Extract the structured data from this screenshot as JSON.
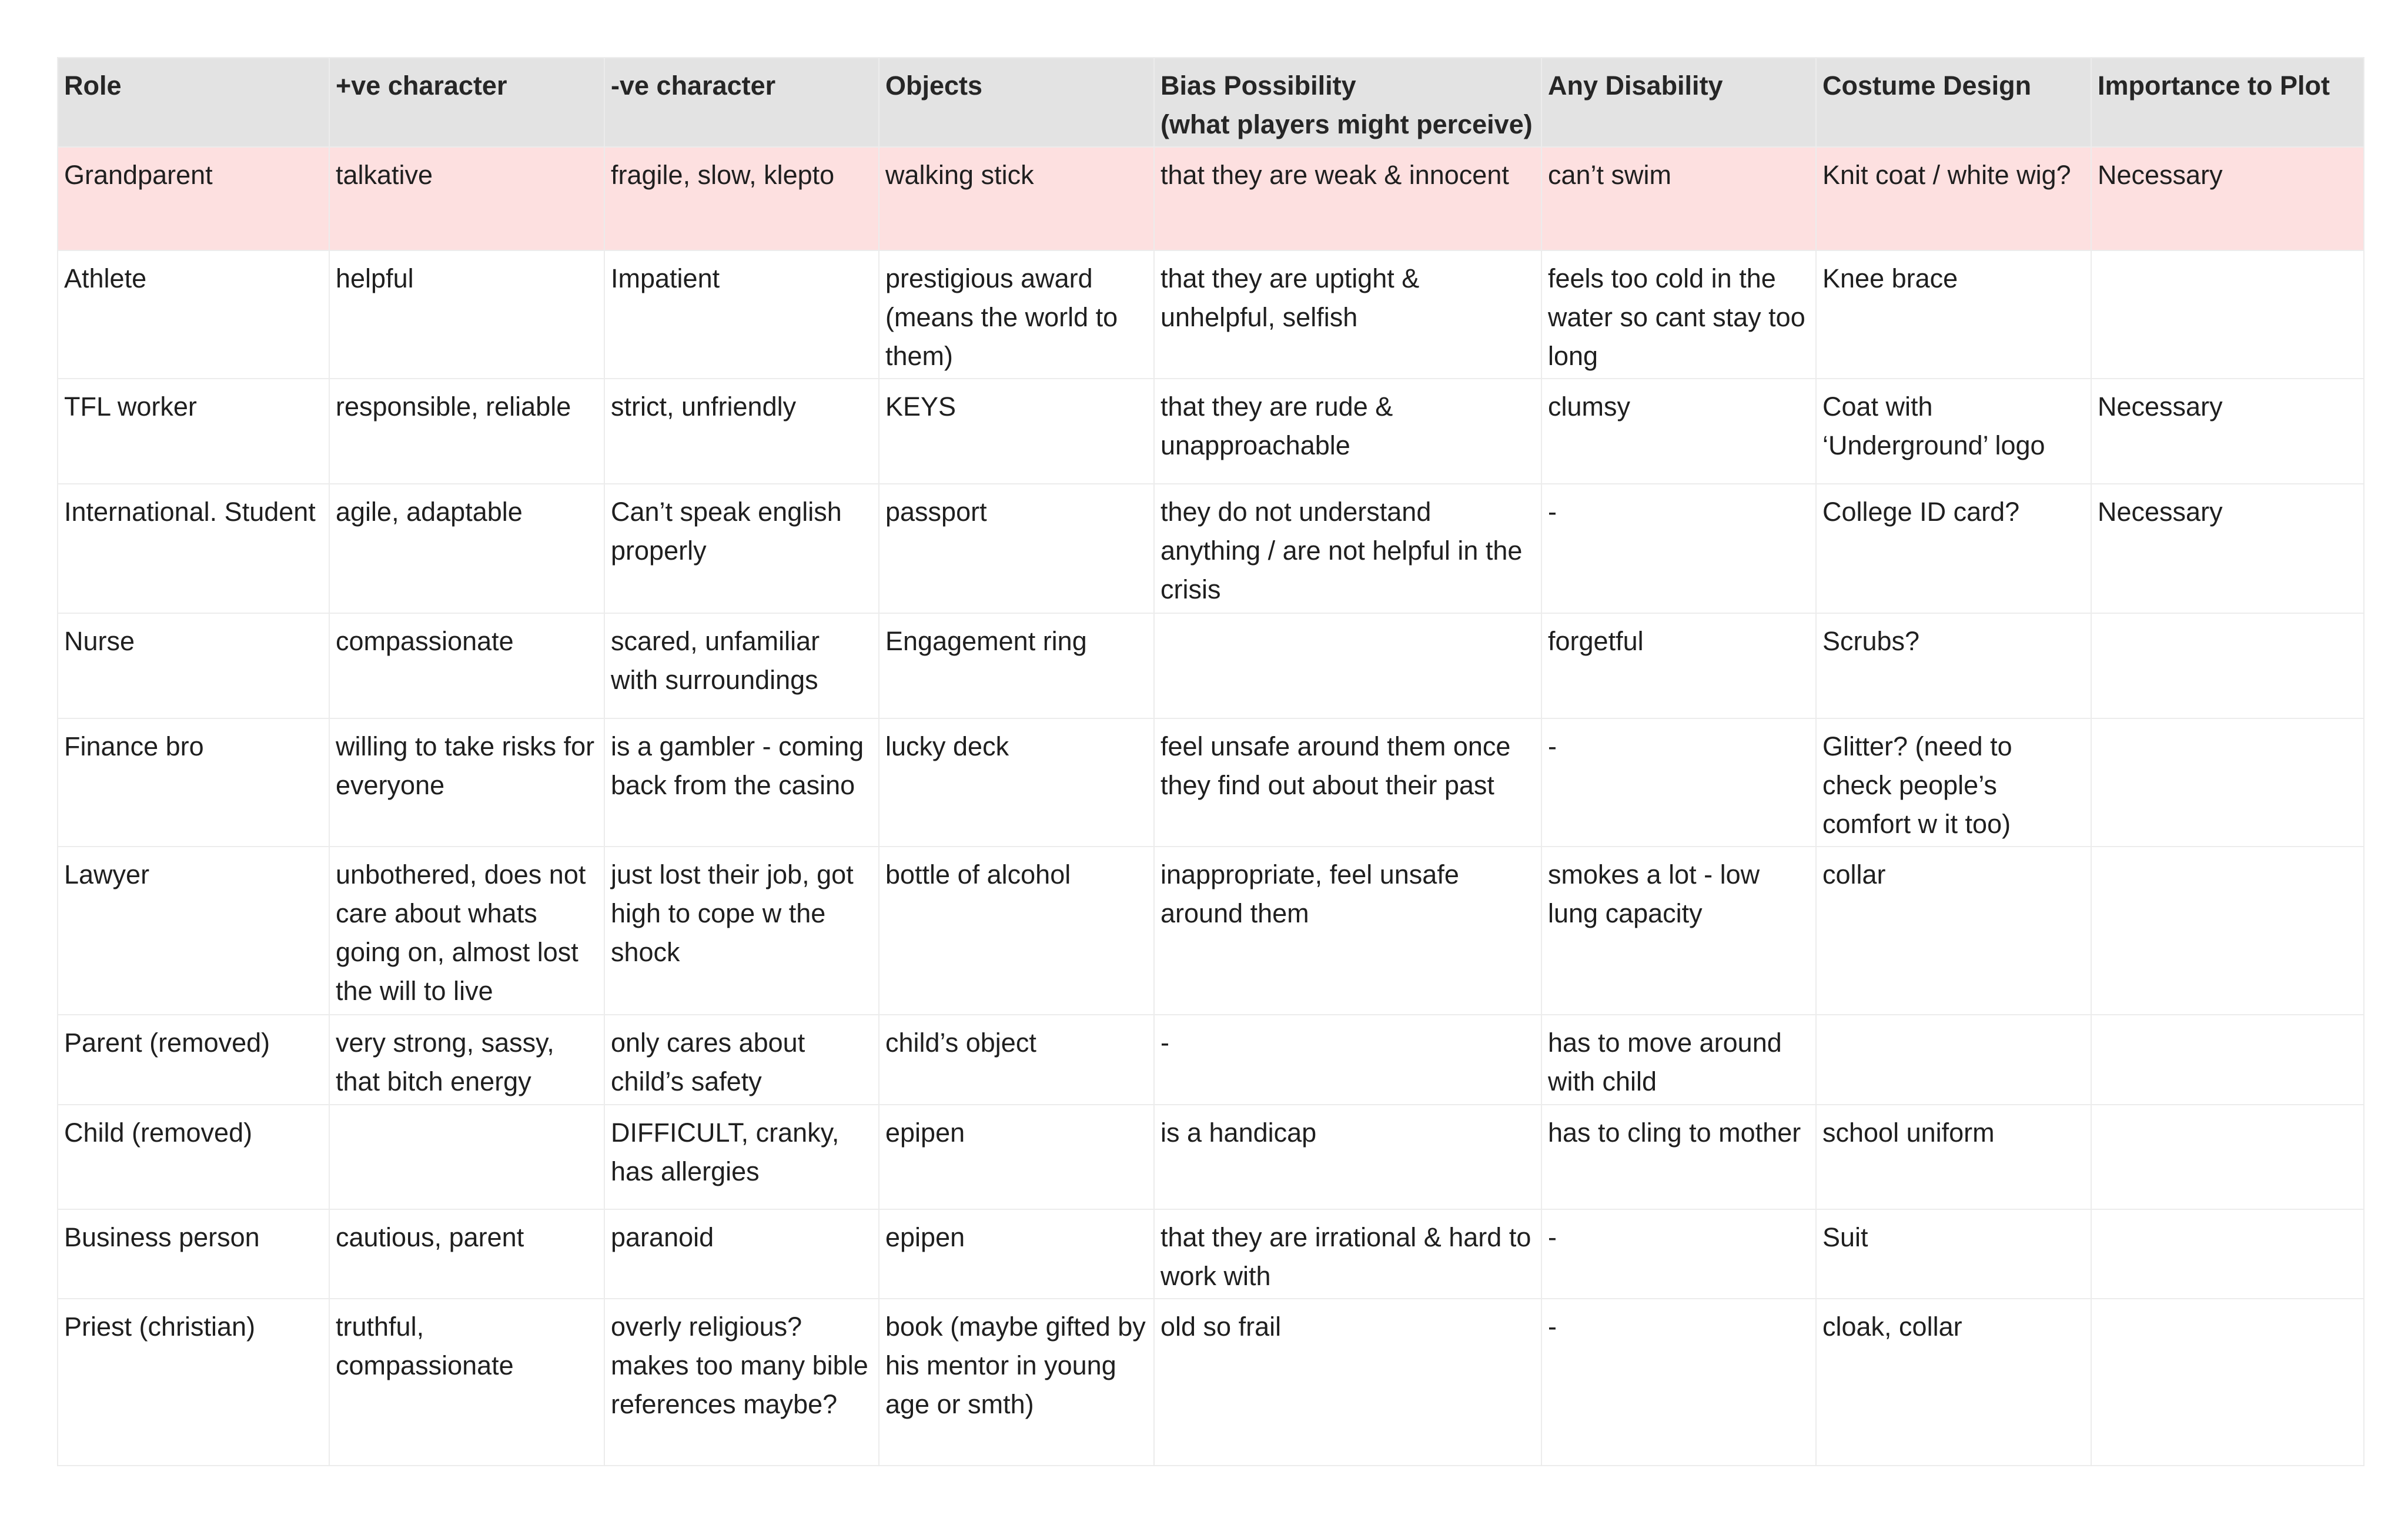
{
  "table": {
    "headers": [
      "Role",
      "+ve character",
      "-ve character",
      "Objects",
      "Bias Possibility\n(what players might perceive)",
      "Any Disability",
      "Costume Design",
      "Importance to Plot"
    ],
    "header_bias_line1": "Bias Possibility",
    "header_bias_line2": "(what players might perceive)",
    "highlight_color": "#fde0e0",
    "rows": [
      [
        "Grandparent",
        "talkative",
        "fragile, slow, klepto",
        "walking stick",
        "that they are weak & innocent",
        "can’t swim",
        "Knit coat / white wig?",
        "Necessary"
      ],
      [
        "Athlete",
        "helpful",
        "Impatient",
        "prestigious award (means the world to them)",
        "that they are uptight & unhelpful, selfish",
        "feels too cold in the water so cant stay too long",
        "Knee brace",
        ""
      ],
      [
        "TFL worker",
        "responsible, reliable",
        "strict, unfriendly",
        "KEYS",
        "that they are rude & unapproachable",
        "clumsy",
        "Coat with ‘Underground’ logo",
        "Necessary"
      ],
      [
        "International. Student",
        "agile, adaptable",
        "Can’t speak english properly",
        "passport",
        "they do not understand anything / are not helpful in the crisis",
        "-",
        "College ID card?",
        "Necessary"
      ],
      [
        "Nurse",
        "compassionate",
        "scared, unfamiliar with surroundings",
        "Engagement ring",
        "",
        "forgetful",
        "Scrubs?",
        ""
      ],
      [
        "Finance bro",
        "willing to take risks for everyone",
        "is a gambler - coming back from the casino",
        "lucky deck",
        "feel unsafe around them once they find out about their past",
        "-",
        "Glitter? (need to check people’s comfort w it too)",
        ""
      ],
      [
        "Lawyer",
        "unbothered, does not care about whats going on, almost lost the will to live",
        "just lost their job, got high to cope w the shock",
        "bottle of alcohol",
        "inappropriate, feel unsafe around them",
        "smokes a lot - low lung capacity",
        "collar",
        ""
      ],
      [
        "Parent (removed)",
        "very strong, sassy, that bitch energy",
        "only cares about child’s safety",
        "child’s object",
        "-",
        "has to move around with child",
        "",
        ""
      ],
      [
        "Child (removed)",
        "",
        "DIFFICULT, cranky, has allergies",
        "epipen",
        "is a handicap",
        "has to cling to mother",
        "school uniform",
        ""
      ],
      [
        "Business person",
        "cautious, parent",
        "paranoid",
        "epipen",
        "that they are irrational & hard to work with",
        "-",
        "Suit",
        ""
      ],
      [
        "Priest (christian)",
        "truthful, compassionate",
        "overly religious? makes too many bible references maybe?",
        "book (maybe gifted by his mentor in young age or smth)",
        "old so frail",
        "-",
        "cloak, collar",
        ""
      ]
    ]
  }
}
